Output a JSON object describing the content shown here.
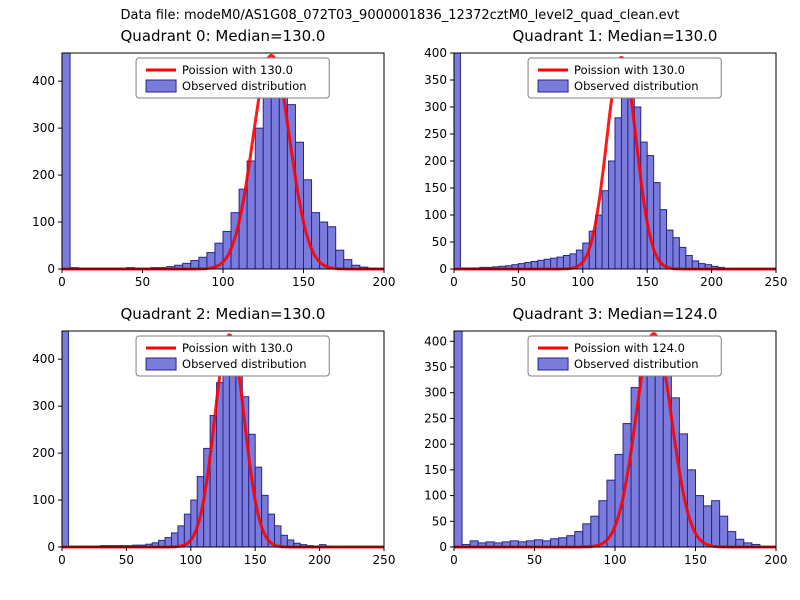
{
  "figure": {
    "suptitle": "Data file: modeM0/AS1G08_072T03_9000001836_12372cztM0_level2_quad_clean.evt",
    "colors": {
      "background": "#ffffff",
      "bar_fill": "#7b7bdc",
      "bar_edge": "#26268c",
      "curve": "#ff0000",
      "axis": "#000000",
      "legend_border": "#808080"
    }
  },
  "chart_data": [
    {
      "type": "bar",
      "title": "Quadrant 0: Median=130.0",
      "legend": [
        "Poission with 130.0",
        "Observed distribution"
      ],
      "xlabel": "",
      "ylabel": "",
      "xlim": [
        0,
        200
      ],
      "ylim": [
        0,
        460
      ],
      "xticks": [
        0,
        50,
        100,
        150,
        200
      ],
      "yticks": [
        0,
        100,
        200,
        300,
        400
      ],
      "bin_start": 0,
      "bin_width": 5,
      "counts": [
        460,
        3,
        2,
        2,
        2,
        2,
        2,
        2,
        3,
        2,
        2,
        3,
        3,
        5,
        8,
        12,
        18,
        25,
        35,
        55,
        80,
        120,
        170,
        230,
        300,
        380,
        440,
        415,
        350,
        270,
        190,
        120,
        100,
        90,
        40,
        20,
        8,
        4,
        2,
        1
      ],
      "curve": {
        "mean": 130,
        "sigma": 11.5,
        "peak": 455
      }
    },
    {
      "type": "bar",
      "title": "Quadrant 1: Median=130.0",
      "legend": [
        "Poission with 130.0",
        "Observed distribution"
      ],
      "xlabel": "",
      "ylabel": "",
      "xlim": [
        0,
        250
      ],
      "ylim": [
        0,
        400
      ],
      "xticks": [
        0,
        50,
        100,
        150,
        200,
        250
      ],
      "yticks": [
        0,
        50,
        100,
        150,
        200,
        250,
        300,
        350,
        400
      ],
      "bin_start": 0,
      "bin_width": 5,
      "counts": [
        400,
        2,
        2,
        2,
        3,
        3,
        4,
        5,
        6,
        8,
        10,
        12,
        14,
        16,
        18,
        20,
        22,
        25,
        28,
        35,
        48,
        70,
        100,
        145,
        200,
        280,
        390,
        365,
        300,
        235,
        210,
        160,
        110,
        72,
        58,
        40,
        25,
        15,
        10,
        8,
        5,
        3
      ],
      "curve": {
        "mean": 130,
        "sigma": 11.5,
        "peak": 392
      }
    },
    {
      "type": "bar",
      "title": "Quadrant 2: Median=130.0",
      "legend": [
        "Poission with 130.0",
        "Observed distribution"
      ],
      "xlabel": "",
      "ylabel": "",
      "xlim": [
        0,
        250
      ],
      "ylim": [
        0,
        460
      ],
      "xticks": [
        0,
        50,
        100,
        150,
        200,
        250
      ],
      "yticks": [
        0,
        100,
        200,
        300,
        400
      ],
      "bin_start": 0,
      "bin_width": 5,
      "counts": [
        460,
        2,
        2,
        2,
        2,
        2,
        3,
        3,
        3,
        3,
        3,
        4,
        4,
        6,
        9,
        14,
        20,
        30,
        45,
        70,
        100,
        150,
        210,
        280,
        350,
        410,
        430,
        395,
        320,
        240,
        170,
        110,
        70,
        45,
        25,
        15,
        8,
        5,
        3,
        2,
        5,
        2
      ],
      "curve": {
        "mean": 130,
        "sigma": 11.5,
        "peak": 452
      }
    },
    {
      "type": "bar",
      "title": "Quadrant 3: Median=124.0",
      "legend": [
        "Poission with 124.0",
        "Observed distribution"
      ],
      "xlabel": "",
      "ylabel": "",
      "xlim": [
        0,
        200
      ],
      "ylim": [
        0,
        420
      ],
      "xticks": [
        0,
        50,
        100,
        150,
        200
      ],
      "yticks": [
        0,
        50,
        100,
        150,
        200,
        250,
        300,
        350,
        400
      ],
      "bin_start": 0,
      "bin_width": 5,
      "counts": [
        420,
        5,
        12,
        8,
        10,
        8,
        10,
        12,
        10,
        12,
        14,
        12,
        16,
        18,
        22,
        30,
        45,
        60,
        90,
        130,
        180,
        240,
        310,
        370,
        395,
        385,
        350,
        290,
        220,
        150,
        100,
        80,
        90,
        60,
        30,
        15,
        8,
        5
      ],
      "curve": {
        "mean": 124,
        "sigma": 11.1,
        "peak": 415
      }
    }
  ]
}
